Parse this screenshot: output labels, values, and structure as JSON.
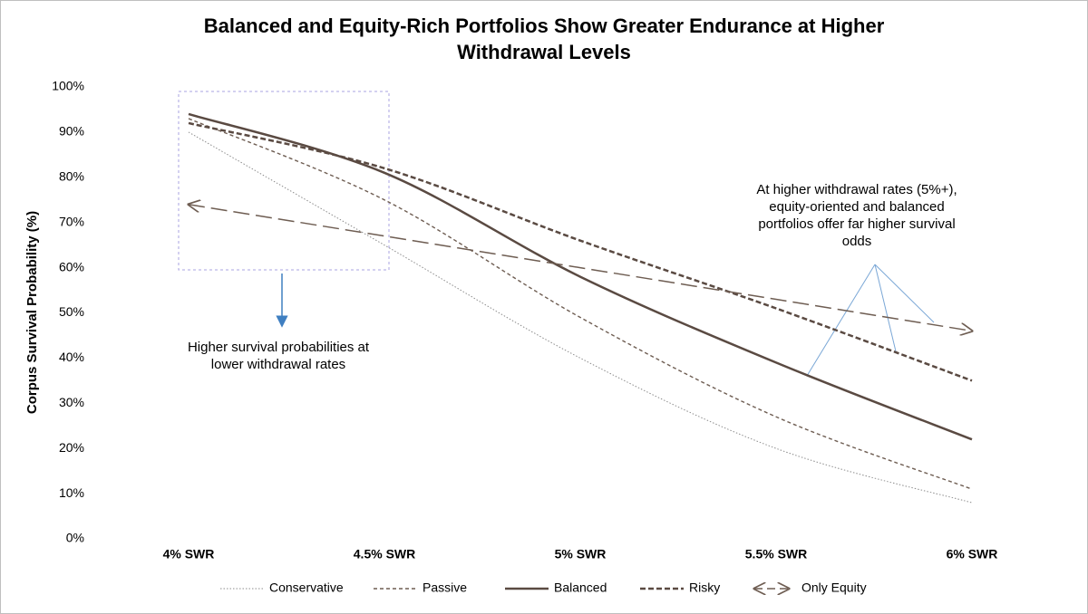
{
  "chart_data": {
    "type": "line",
    "title": "Balanced and Equity-Rich Portfolios Show Greater Endurance at Higher Withdrawal Levels",
    "title_lines": [
      "Balanced and Equity-Rich Portfolios Show Greater Endurance at Higher",
      "Withdrawal Levels"
    ],
    "y_label": "Corpus Survival Probability (%)",
    "categories": [
      "4% SWR",
      "4.5% SWR",
      "5% SWR",
      "5.5% SWR",
      "6% SWR"
    ],
    "series": [
      {
        "name": "Conservative",
        "color": "#8c8c8c",
        "dash": "dotted",
        "values": [
          90,
          65,
          40,
          20,
          8
        ]
      },
      {
        "name": "Passive",
        "color": "#6e5d52",
        "dash": "dashed",
        "values": [
          93,
          75,
          49,
          27,
          11
        ]
      },
      {
        "name": "Balanced",
        "color": "#5a4a42",
        "dash": "solid",
        "values": [
          94,
          81,
          58,
          39,
          22
        ]
      },
      {
        "name": "Risky",
        "color": "#5a4a42",
        "dash": "bold-dashed",
        "values": [
          92,
          82,
          66,
          51,
          35
        ]
      },
      {
        "name": "Only Equity",
        "color": "#6e5d52",
        "dash": "long-arrow",
        "values": [
          74,
          67,
          60,
          53,
          46
        ]
      }
    ],
    "ylim": [
      0,
      100
    ],
    "yticks": [
      {
        "value": 0,
        "label": "0%"
      },
      {
        "value": 10,
        "label": "10%"
      },
      {
        "value": 20,
        "label": "20%"
      },
      {
        "value": 30,
        "label": "30%"
      },
      {
        "value": 40,
        "label": "40%"
      },
      {
        "value": 50,
        "label": "50%"
      },
      {
        "value": 60,
        "label": "60%"
      },
      {
        "value": 70,
        "label": "70%"
      },
      {
        "value": 80,
        "label": "80%"
      },
      {
        "value": 90,
        "label": "90%"
      },
      {
        "value": 100,
        "label": "100%"
      }
    ],
    "grid": false,
    "legend": "bottom",
    "annotations": [
      {
        "lines": [
          "Higher survival probabilities  at",
          "lower withdrawal rates"
        ]
      },
      {
        "lines": [
          "At higher withdrawal rates (5%+),",
          "equity-oriented and balanced",
          "portfolios offer far higher survival",
          "odds"
        ]
      }
    ]
  }
}
